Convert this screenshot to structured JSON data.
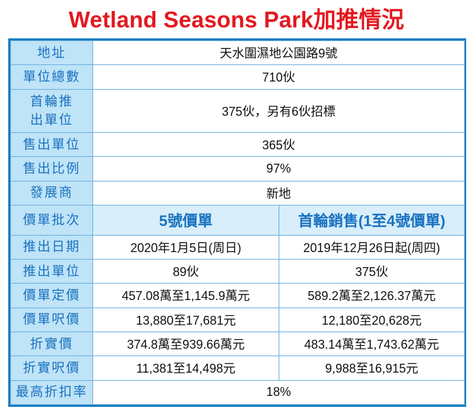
{
  "title": "Wetland Seasons Park加推情況",
  "rows": [
    {
      "label": "地址",
      "value": "天水圍濕地公園路9號"
    },
    {
      "label": "單位總數",
      "value": "710伙"
    },
    {
      "label": "首輪推出單位",
      "value": "375伙，另有6伙招標"
    },
    {
      "label": "售出單位",
      "value": "365伙"
    },
    {
      "label": "售出比例",
      "value": "97%"
    },
    {
      "label": "發展商",
      "value": "新地"
    }
  ],
  "batch": {
    "label": "價單批次",
    "col_a": "5號價單",
    "col_b": "首輪銷售(1至4號價單)"
  },
  "compare_rows": [
    {
      "label": "推出日期",
      "a": "2020年1月5日(周日)",
      "b": "2019年12月26日起(周四)"
    },
    {
      "label": "推出單位",
      "a": "89伙",
      "b": "375伙"
    },
    {
      "label": "價單定價",
      "a": "457.08萬至1,145.9萬元",
      "b": "589.2萬至2,126.37萬元"
    },
    {
      "label": "價單呎價",
      "a": "13,880至17,681元",
      "b": "12,180至20,628元"
    },
    {
      "label": "折實價",
      "a": "374.8萬至939.66萬元",
      "b": "483.14萬至1,743.62萬元"
    },
    {
      "label": "折實呎價",
      "a": "11,381至14,498元",
      "b": "9,988至16,915元"
    }
  ],
  "final_row": {
    "label": "最高折扣率",
    "value": "18%"
  }
}
